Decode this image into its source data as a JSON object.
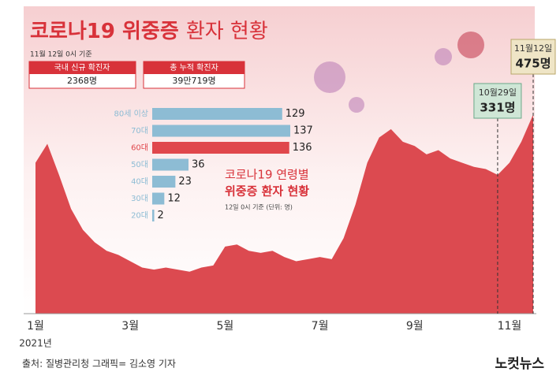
{
  "title_main": "코로나19 위중증",
  "title_sub": "환자 현황",
  "date_note": "11월 12일 0시 기준",
  "stats": [
    {
      "label": "국내 신규 확진자",
      "value": "2368명"
    },
    {
      "label": "총 누적 확진자",
      "value": "39만719명"
    }
  ],
  "source": "출처: 질병관리청   그래픽= 김소영 기자",
  "logo": "노컷뉴스",
  "chart_data": [
    {
      "type": "area",
      "color": "#dc4a50",
      "year_label": "2021년",
      "ylim": [
        0,
        500
      ],
      "categories": [
        "1월",
        null,
        null,
        null,
        null,
        null,
        null,
        null,
        "3월",
        null,
        null,
        null,
        null,
        null,
        null,
        null,
        "5월",
        null,
        null,
        null,
        null,
        null,
        null,
        null,
        "7월",
        null,
        null,
        null,
        null,
        null,
        null,
        null,
        "9월",
        null,
        null,
        null,
        null,
        null,
        null,
        null,
        "11월",
        null,
        null
      ],
      "values": [
        360,
        405,
        330,
        250,
        200,
        170,
        150,
        140,
        125,
        110,
        105,
        110,
        105,
        100,
        110,
        115,
        160,
        165,
        150,
        145,
        150,
        135,
        125,
        130,
        135,
        130,
        180,
        260,
        360,
        420,
        440,
        410,
        400,
        380,
        390,
        370,
        360,
        350,
        345,
        331,
        360,
        410,
        475
      ],
      "value_labels": [
        null,
        null,
        null,
        null,
        null,
        null,
        null,
        null,
        null,
        null,
        null,
        null,
        null,
        null,
        null,
        null,
        null,
        null,
        null,
        null,
        null,
        null,
        null,
        null,
        null,
        null,
        null,
        null,
        null,
        null,
        null,
        null,
        null,
        null,
        null,
        null,
        null,
        null,
        null,
        "331명",
        null,
        null,
        "475명"
      ],
      "value_dates": [
        null,
        null,
        null,
        null,
        null,
        null,
        null,
        null,
        null,
        null,
        null,
        null,
        null,
        null,
        null,
        null,
        null,
        null,
        null,
        null,
        null,
        null,
        null,
        null,
        null,
        null,
        null,
        null,
        null,
        null,
        null,
        null,
        null,
        null,
        null,
        null,
        null,
        null,
        null,
        "10월29일",
        null,
        null,
        "11월12일"
      ]
    },
    {
      "type": "hbar",
      "title": [
        "코로나19 연령별",
        "위중증 환자 현황"
      ],
      "note": "12일 0시 기준 (단위: 명)",
      "categories": [
        "80세 이상",
        "70대",
        "60대",
        "50대",
        "40대",
        "30대",
        "20대"
      ],
      "values": [
        129,
        137,
        136,
        36,
        23,
        12,
        2
      ],
      "colors": [
        "#8dbcd4",
        "#8dbcd4",
        "#e0474c",
        "#8dbcd4",
        "#8dbcd4",
        "#8dbcd4",
        "#8dbcd4"
      ]
    }
  ]
}
